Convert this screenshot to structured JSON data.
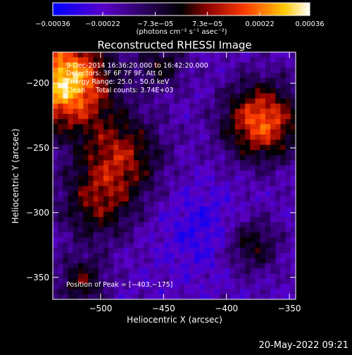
{
  "chart_data": {
    "type": "heatmap",
    "title": "Reconstructed RHESSI Image",
    "xlabel": "Heliocentric X (arcsec)",
    "ylabel": "Heliocentric Y (arcsec)",
    "xlim": [
      -538,
      -345
    ],
    "ylim": [
      -367,
      -176
    ],
    "x_ticks": [
      -500,
      -450,
      -400,
      -350
    ],
    "y_ticks": [
      -200,
      -250,
      -300,
      -350
    ],
    "x_tick_labels": [
      "−500",
      "−450",
      "−400",
      "−350"
    ],
    "y_tick_labels": [
      "−200",
      "−250",
      "−300",
      "−350"
    ],
    "colorbar": {
      "range": [
        -0.00036,
        0.00036
      ],
      "tick_labels": [
        "−0.00036",
        "−0.00022",
        "−7.3e−05",
        "7.3e−05",
        "0.00022",
        "0.00036"
      ],
      "tick_values": [
        -0.00036,
        -0.00022,
        -7.3e-05,
        7.3e-05,
        0.00022,
        0.00036
      ],
      "units_label": "(photons cm⁻² s⁻¹ asec⁻²)",
      "colors": [
        "#0000ff",
        "#5a00c8",
        "#000000",
        "#8c0000",
        "#ff3c00",
        "#ffc800",
        "#ffffff"
      ]
    },
    "annotations": {
      "time": "9‑Dec‑2014 16:36:20.000 to 16:42:20.000",
      "detectors": "Detectors: 3F 6F 7F 9F, Att 0",
      "energy": "Energy Range: 25.0 – 50.0 keV",
      "clean": "Clean     Total counts: 3.74E+03",
      "peak": "Position of Peak = [−403,−175]"
    },
    "grid": false,
    "peak": [
      -403,
      -175
    ]
  },
  "footer": {
    "timestamp": "20‑May‑2022 09:21"
  }
}
